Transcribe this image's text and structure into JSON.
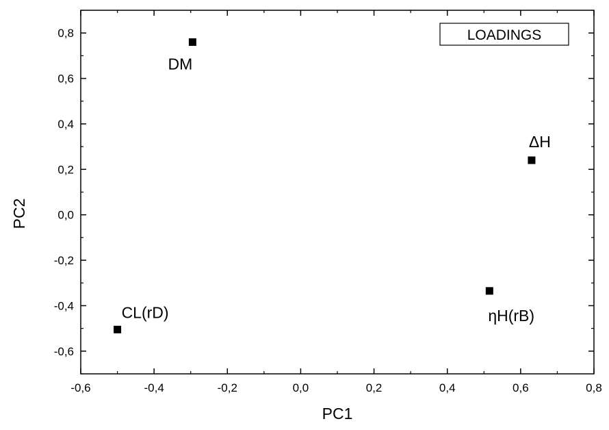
{
  "chart_data": {
    "type": "scatter",
    "title": "",
    "xlabel": "PC1",
    "ylabel": "PC2",
    "xlim": [
      -0.6,
      0.8
    ],
    "ylim": [
      -0.7,
      0.9
    ],
    "x_ticks": [
      "-0,6",
      "-0,4",
      "-0,2",
      "0,0",
      "0,2",
      "0,4",
      "0,6",
      "0,8"
    ],
    "y_ticks": [
      "-0,6",
      "-0,4",
      "-0,2",
      "0,0",
      "0,2",
      "0,4",
      "0,6",
      "0,8"
    ],
    "grid": false,
    "legend": {
      "text": "LOADINGS",
      "placement": "top-right"
    },
    "points": [
      {
        "label": "DM",
        "x": -0.295,
        "y": 0.76,
        "label_side": "below-left"
      },
      {
        "label": "ΔH",
        "x": 0.63,
        "y": 0.24,
        "label_side": "above"
      },
      {
        "label": "CL(rD)",
        "x": -0.5,
        "y": -0.505,
        "label_side": "above-right"
      },
      {
        "label": "ηH(rB)",
        "x": 0.515,
        "y": -0.335,
        "label_side": "below-right"
      }
    ],
    "marker": "square",
    "marker_color": "#000000"
  }
}
